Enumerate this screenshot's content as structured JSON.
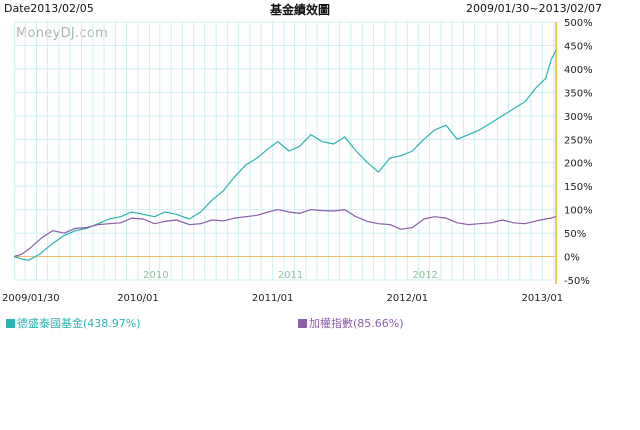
{
  "header": {
    "date_label": "Date2013/02/05",
    "title": "基金績效圖",
    "range_label": "2009/01/30~2013/02/07",
    "watermark": "MoneyDJ.com"
  },
  "legend": [
    {
      "label": "德盛泰國基金(438.97%)",
      "color": "#2ab3b1"
    },
    {
      "label": "加權指數(85.66%)",
      "color": "#8b5ea5"
    }
  ],
  "colors": {
    "grid": "#cfeff2",
    "zero_line": "#f0c070",
    "marker_line": "#f2c94c",
    "year_label": "#8fc2a0",
    "axis_text": "#222222"
  },
  "chart_data": {
    "type": "line",
    "title": "基金績效圖",
    "x_ticks": [
      "2009/01/30",
      "2010/01",
      "2011/01",
      "2012/01",
      "2013/01"
    ],
    "year_labels": [
      "2010",
      "2011",
      "2012"
    ],
    "y_ticks": [
      "500%",
      "450%",
      "400%",
      "350%",
      "300%",
      "250%",
      "200%",
      "150%",
      "100%",
      "50%",
      "0%",
      "-50%"
    ],
    "ylim": [
      -50,
      500
    ],
    "y_unit": "%",
    "x_range": [
      "2009-01-30",
      "2013-02-07"
    ],
    "grid": true,
    "legend_position": "bottom",
    "series": [
      {
        "name": "德盛泰國基金(438.97%)",
        "color": "#2ab3b1",
        "points": [
          [
            "2009-01-30",
            0
          ],
          [
            "2009-02-20",
            -5
          ],
          [
            "2009-03-10",
            -8
          ],
          [
            "2009-04-10",
            5
          ],
          [
            "2009-05-10",
            25
          ],
          [
            "2009-06-15",
            45
          ],
          [
            "2009-07-15",
            55
          ],
          [
            "2009-08-15",
            60
          ],
          [
            "2009-09-15",
            70
          ],
          [
            "2009-10-15",
            80
          ],
          [
            "2009-11-15",
            85
          ],
          [
            "2009-12-15",
            95
          ],
          [
            "2010-01-15",
            90
          ],
          [
            "2010-02-15",
            85
          ],
          [
            "2010-03-15",
            95
          ],
          [
            "2010-04-15",
            90
          ],
          [
            "2010-05-20",
            80
          ],
          [
            "2010-06-20",
            95
          ],
          [
            "2010-07-20",
            120
          ],
          [
            "2010-08-20",
            140
          ],
          [
            "2010-09-20",
            170
          ],
          [
            "2010-10-20",
            195
          ],
          [
            "2010-11-20",
            210
          ],
          [
            "2010-12-20",
            230
          ],
          [
            "2011-01-15",
            245
          ],
          [
            "2011-02-15",
            225
          ],
          [
            "2011-03-15",
            235
          ],
          [
            "2011-04-15",
            260
          ],
          [
            "2011-05-15",
            245
          ],
          [
            "2011-06-15",
            240
          ],
          [
            "2011-07-15",
            255
          ],
          [
            "2011-08-15",
            225
          ],
          [
            "2011-09-15",
            200
          ],
          [
            "2011-10-15",
            180
          ],
          [
            "2011-11-15",
            210
          ],
          [
            "2011-12-15",
            215
          ],
          [
            "2012-01-15",
            225
          ],
          [
            "2012-02-15",
            250
          ],
          [
            "2012-03-15",
            270
          ],
          [
            "2012-04-15",
            280
          ],
          [
            "2012-05-15",
            250
          ],
          [
            "2012-06-15",
            260
          ],
          [
            "2012-07-15",
            270
          ],
          [
            "2012-08-15",
            285
          ],
          [
            "2012-09-15",
            300
          ],
          [
            "2012-10-15",
            315
          ],
          [
            "2012-11-15",
            330
          ],
          [
            "2012-12-15",
            360
          ],
          [
            "2013-01-10",
            380
          ],
          [
            "2013-01-25",
            420
          ],
          [
            "2013-02-07",
            438.97
          ]
        ]
      },
      {
        "name": "加權指數(85.66%)",
        "color": "#8b5ea5",
        "points": [
          [
            "2009-01-30",
            0
          ],
          [
            "2009-02-20",
            5
          ],
          [
            "2009-03-15",
            18
          ],
          [
            "2009-04-15",
            40
          ],
          [
            "2009-05-15",
            55
          ],
          [
            "2009-06-15",
            50
          ],
          [
            "2009-07-15",
            60
          ],
          [
            "2009-08-15",
            62
          ],
          [
            "2009-09-15",
            68
          ],
          [
            "2009-10-15",
            70
          ],
          [
            "2009-11-15",
            72
          ],
          [
            "2009-12-15",
            82
          ],
          [
            "2010-01-15",
            80
          ],
          [
            "2010-02-15",
            70
          ],
          [
            "2010-03-15",
            75
          ],
          [
            "2010-04-15",
            78
          ],
          [
            "2010-05-20",
            68
          ],
          [
            "2010-06-20",
            70
          ],
          [
            "2010-07-20",
            78
          ],
          [
            "2010-08-20",
            76
          ],
          [
            "2010-09-20",
            82
          ],
          [
            "2010-10-20",
            85
          ],
          [
            "2010-11-20",
            88
          ],
          [
            "2010-12-20",
            95
          ],
          [
            "2011-01-15",
            100
          ],
          [
            "2011-02-15",
            95
          ],
          [
            "2011-03-15",
            92
          ],
          [
            "2011-04-15",
            100
          ],
          [
            "2011-05-15",
            98
          ],
          [
            "2011-06-15",
            97
          ],
          [
            "2011-07-15",
            100
          ],
          [
            "2011-08-15",
            85
          ],
          [
            "2011-09-15",
            75
          ],
          [
            "2011-10-15",
            70
          ],
          [
            "2011-11-15",
            68
          ],
          [
            "2011-12-15",
            58
          ],
          [
            "2012-01-15",
            62
          ],
          [
            "2012-02-15",
            80
          ],
          [
            "2012-03-15",
            85
          ],
          [
            "2012-04-15",
            82
          ],
          [
            "2012-05-15",
            72
          ],
          [
            "2012-06-15",
            68
          ],
          [
            "2012-07-15",
            70
          ],
          [
            "2012-08-15",
            72
          ],
          [
            "2012-09-15",
            78
          ],
          [
            "2012-10-15",
            72
          ],
          [
            "2012-11-15",
            70
          ],
          [
            "2012-12-15",
            76
          ],
          [
            "2013-01-10",
            80
          ],
          [
            "2013-01-25",
            82
          ],
          [
            "2013-02-07",
            85.66
          ]
        ]
      }
    ]
  }
}
